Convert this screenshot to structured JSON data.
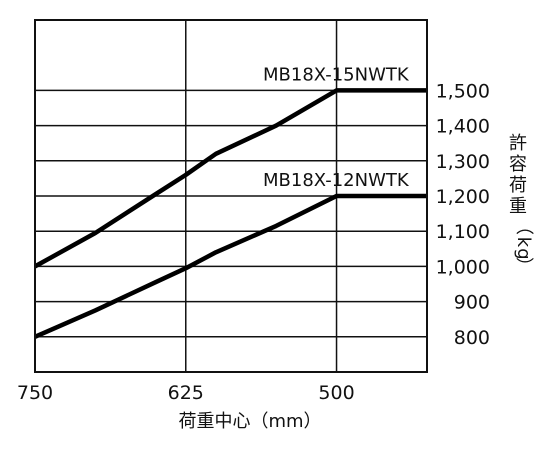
{
  "chart_data": {
    "type": "line",
    "x": [
      750,
      700,
      650,
      625,
      600,
      550,
      500,
      475,
      450,
      425
    ],
    "xlim": [
      750,
      425
    ],
    "xticks": [
      {
        "value": 750,
        "label": "750"
      },
      {
        "value": 625,
        "label": "625"
      },
      {
        "value": 500,
        "label": "500"
      }
    ],
    "xlabel": "荷重中心（mm）",
    "ylim": [
      700,
      1700
    ],
    "yticks": [
      {
        "value": 800,
        "label": "800"
      },
      {
        "value": 900,
        "label": "900"
      },
      {
        "value": 1000,
        "label": "1,000"
      },
      {
        "value": 1100,
        "label": "1,100"
      },
      {
        "value": 1200,
        "label": "1,200"
      },
      {
        "value": 1300,
        "label": "1,300"
      },
      {
        "value": 1400,
        "label": "1,400"
      },
      {
        "value": 1500,
        "label": "1,500"
      }
    ],
    "ylabel": "許容荷重（kg）",
    "grid": true,
    "series": [
      {
        "name": "MB18X-15NWTK",
        "points": [
          [
            750,
            1000
          ],
          [
            700,
            1095
          ],
          [
            650,
            1205
          ],
          [
            625,
            1260
          ],
          [
            600,
            1320
          ],
          [
            550,
            1400
          ],
          [
            500,
            1500
          ],
          [
            425,
            1500
          ]
        ]
      },
      {
        "name": "MB18X-12NWTK",
        "points": [
          [
            750,
            800
          ],
          [
            700,
            875
          ],
          [
            650,
            955
          ],
          [
            625,
            995
          ],
          [
            600,
            1040
          ],
          [
            550,
            1115
          ],
          [
            500,
            1200
          ],
          [
            425,
            1200
          ]
        ]
      }
    ]
  }
}
